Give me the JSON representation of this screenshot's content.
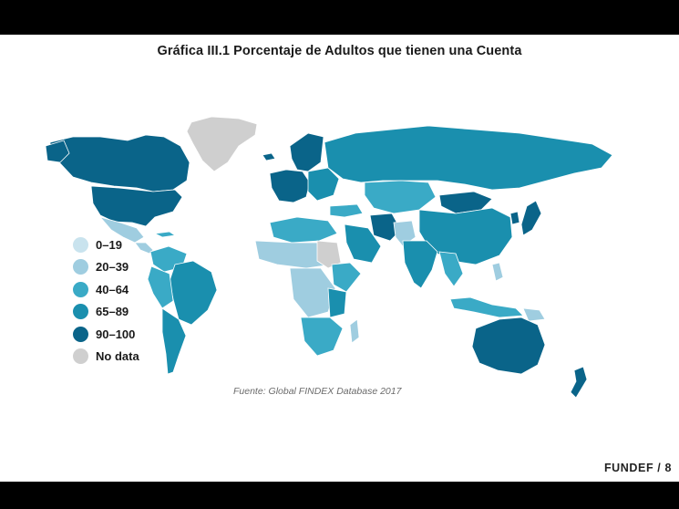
{
  "slide": {
    "title": "Gráfica III.1 Porcentaje de Adultos que tienen una Cuenta",
    "source": "Fuente: Global FINDEX Database 2017",
    "footer": "FUNDEF / 8"
  },
  "legend": {
    "items": [
      {
        "label": "0–19",
        "color": "#c9e3ee"
      },
      {
        "label": "20–39",
        "color": "#9fcde0"
      },
      {
        "label": "40–64",
        "color": "#3aaac6"
      },
      {
        "label": "65–89",
        "color": "#1a8fae"
      },
      {
        "label": "90–100",
        "color": "#0a6489"
      },
      {
        "label": "No data",
        "color": "#cfcfcf"
      }
    ]
  }
}
